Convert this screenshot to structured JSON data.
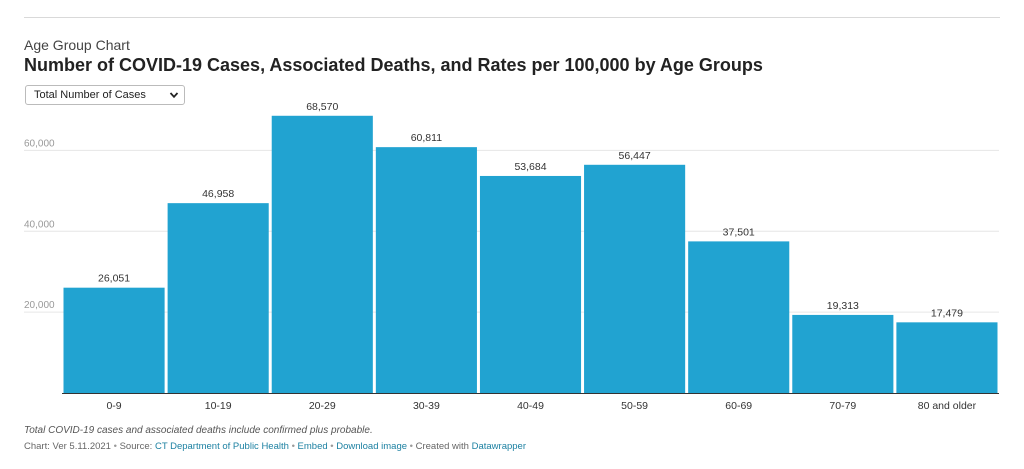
{
  "header": {
    "kicker": "Age Group Chart",
    "title": "Number of COVID-19 Cases, Associated Deaths, and Rates per 100,000 by Age Groups"
  },
  "selector": {
    "selected": "Total Number of Cases",
    "icon": "chevron-down-icon"
  },
  "chart_data": {
    "type": "bar",
    "categories": [
      "0-9",
      "10-19",
      "20-29",
      "30-39",
      "40-49",
      "50-59",
      "60-69",
      "70-79",
      "80 and older"
    ],
    "values": [
      26051,
      46958,
      68570,
      60811,
      53684,
      56447,
      37501,
      19313,
      17479
    ],
    "value_labels": [
      "26,051",
      "46,958",
      "68,570",
      "60,811",
      "53,684",
      "56,447",
      "37,501",
      "19,313",
      "17,479"
    ],
    "y_ticks": [
      20000,
      40000,
      60000
    ],
    "y_tick_labels": [
      "20,000",
      "40,000",
      "60,000"
    ],
    "ylim": [
      0,
      70000
    ],
    "grid": true,
    "bar_color": "#21a3d1"
  },
  "notes": "Total COVID-19 cases and associated deaths include confirmed plus probable.",
  "footer": {
    "version": "Chart: Ver 5.11.2021",
    "source_label": "Source:",
    "source": "CT Department of Public Health",
    "embed": "Embed",
    "download": "Download image",
    "created_label": "Created with",
    "created_with": "Datawrapper",
    "separator": "•"
  }
}
